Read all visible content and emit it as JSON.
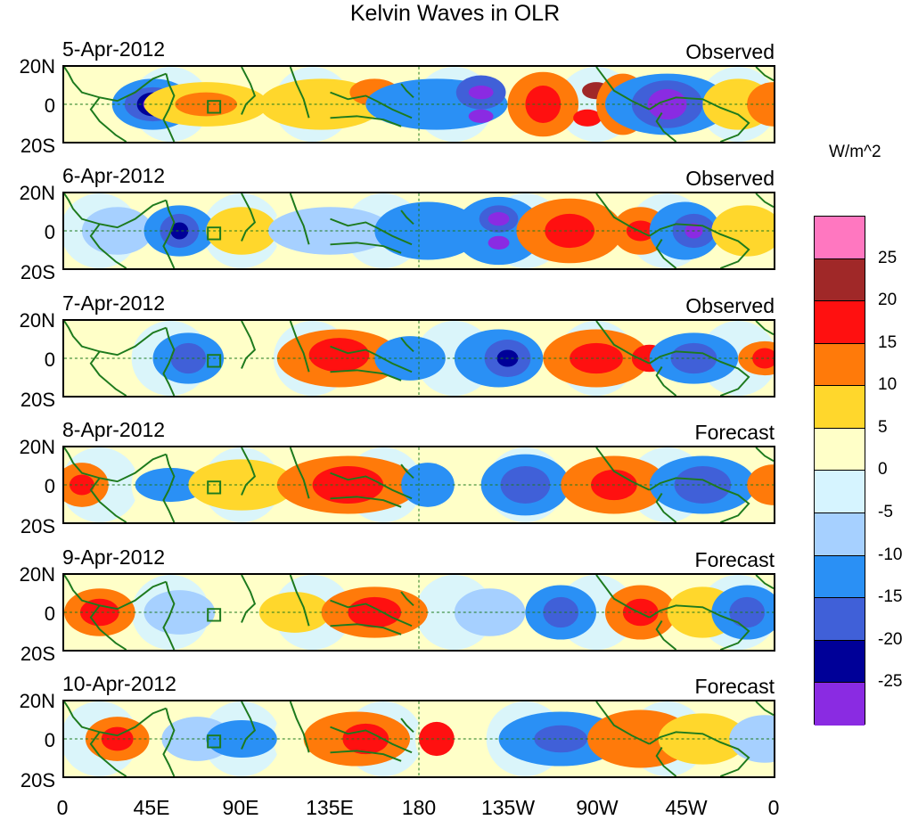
{
  "title": "Kelvin Waves in OLR",
  "panels": [
    {
      "date": "5-Apr-2012",
      "status": "Observed"
    },
    {
      "date": "6-Apr-2012",
      "status": "Observed"
    },
    {
      "date": "7-Apr-2012",
      "status": "Observed"
    },
    {
      "date": "8-Apr-2012",
      "status": "Forecast"
    },
    {
      "date": "9-Apr-2012",
      "status": "Forecast"
    },
    {
      "date": "10-Apr-2012",
      "status": "Forecast"
    }
  ],
  "lat_labels": [
    "20N",
    "0",
    "20S"
  ],
  "lon_labels": [
    "0",
    "45E",
    "90E",
    "135E",
    "180",
    "135W",
    "90W",
    "45W",
    "0"
  ],
  "colorbar": {
    "unit": "W/m^2",
    "labels": [
      "25",
      "20",
      "15",
      "10",
      "5",
      "0",
      "-5",
      "-10",
      "-15",
      "-20",
      "-25"
    ],
    "colors": [
      "#ff77c0",
      "#a02828",
      "#ff1010",
      "#ff7a0a",
      "#ffd72c",
      "#ffffc8",
      "#d6f4ff",
      "#a6d0ff",
      "#2a90f5",
      "#4060d8",
      "#000098",
      "#8a2be2"
    ]
  },
  "style": {
    "coast_color": "#1d7a1d",
    "equator_color": "#1d7a1d"
  }
}
